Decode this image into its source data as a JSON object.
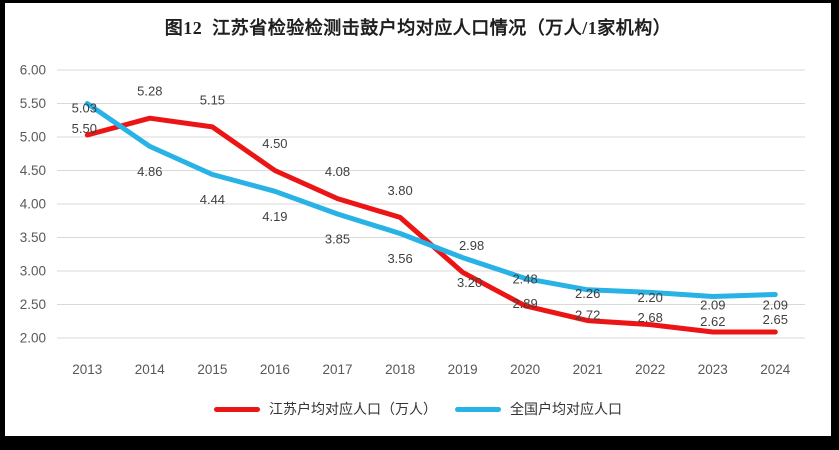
{
  "title": "图12  江苏省检验检测击鼓户均对应人口情况（万人/1家机构）",
  "chart_data": {
    "type": "line",
    "categories": [
      "2013",
      "2014",
      "2015",
      "2016",
      "2017",
      "2018",
      "2019",
      "2020",
      "2021",
      "2022",
      "2023",
      "2024"
    ],
    "series": [
      {
        "name": "江苏户均对应人口（万人）",
        "color": "#ec1515",
        "values": [
          5.03,
          5.28,
          5.15,
          4.5,
          4.08,
          3.8,
          2.98,
          2.48,
          2.26,
          2.2,
          2.09,
          2.09
        ],
        "label_position": "above"
      },
      {
        "name": "全国户均对应人口",
        "color": "#28b2e6",
        "values": [
          5.5,
          4.86,
          4.44,
          4.19,
          3.85,
          3.56,
          3.2,
          2.89,
          2.72,
          2.68,
          2.62,
          2.65
        ],
        "label_position": "below"
      }
    ],
    "title": "图12  江苏省检验检测击鼓户均对应人口情况（万人/1家机构）",
    "xlabel": "",
    "ylabel": "",
    "ylim": [
      2.0,
      6.0
    ],
    "ytick_step": 0.5,
    "yticks": [
      "6.00",
      "5.50",
      "5.00",
      "4.50",
      "4.00",
      "3.50",
      "3.00",
      "2.50",
      "2.00"
    ],
    "grid": true,
    "data_labels": true,
    "label_decimals": 2,
    "legend_position": "bottom"
  },
  "legend": {
    "items": [
      {
        "label": "江苏户均对应人口（万人）"
      },
      {
        "label": "全国户均对应人口"
      }
    ]
  },
  "colors": {
    "frame": "#000000",
    "background": "#ffffff",
    "grid": "#d9d9d9",
    "axis_text": "#595959",
    "data_label_text": "#404040",
    "title_text": "#1f1f1f",
    "jiangsu_line": "#ec1515",
    "national_line": "#28b2e6"
  }
}
